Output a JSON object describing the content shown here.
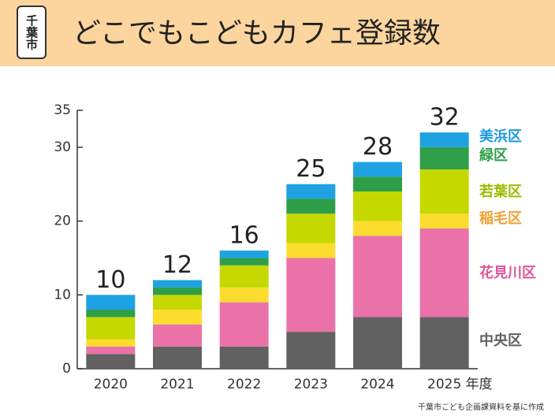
{
  "header": {
    "badge": "千葉市",
    "title": "どこでもこどもカフェ登録数"
  },
  "chart_data": {
    "type": "stacked_bar",
    "categories": [
      "2020",
      "2021",
      "2022",
      "2023",
      "2024",
      "2025"
    ],
    "x_unit": "年度",
    "series": [
      {
        "name": "中央区",
        "color": "#616161",
        "values": [
          2,
          3,
          3,
          5,
          7,
          7
        ]
      },
      {
        "name": "花見川区",
        "color": "#ea72a8",
        "values": [
          1,
          3,
          6,
          10,
          11,
          12
        ]
      },
      {
        "name": "稲毛区",
        "color": "#fcdc2e",
        "values": [
          1,
          2,
          2,
          2,
          2,
          2
        ]
      },
      {
        "name": "若葉区",
        "color": "#c5d800",
        "values": [
          3,
          2,
          3,
          4,
          4,
          6
        ]
      },
      {
        "name": "緑区",
        "color": "#2e9e48",
        "values": [
          1,
          1,
          1,
          2,
          2,
          3
        ]
      },
      {
        "name": "美浜区",
        "color": "#1ea2e2",
        "values": [
          2,
          1,
          1,
          2,
          2,
          2
        ]
      }
    ],
    "totals": [
      10,
      12,
      16,
      25,
      28,
      32
    ],
    "ylim": [
      0,
      35
    ],
    "yticks": [
      0,
      10,
      20,
      30,
      35
    ]
  },
  "source": "千葉市こども企画課資料を基に作成"
}
